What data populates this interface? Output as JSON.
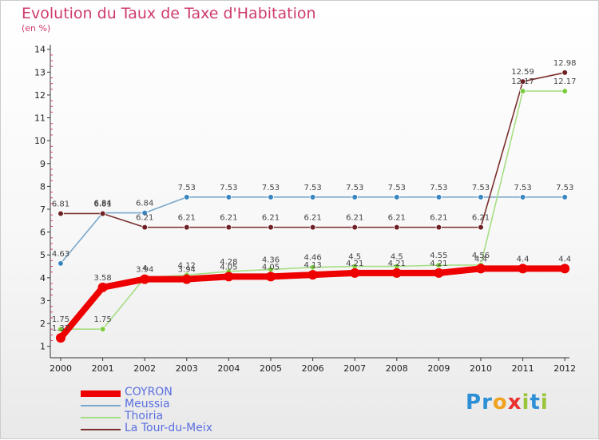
{
  "chart_data": {
    "type": "line",
    "title": "Evolution du Taux de Taxe d'Habitation",
    "subtitle": "(en %)",
    "xlabel": "",
    "ylabel": "(en %)",
    "ylim": [
      0.5,
      14.2
    ],
    "yticks": [
      "1",
      "2",
      "3",
      "4",
      "5",
      "6",
      "7",
      "8",
      "9",
      "10",
      "11",
      "12",
      "13",
      "14"
    ],
    "categories": [
      "2000",
      "2001",
      "2002",
      "2003",
      "2004",
      "2005",
      "2006",
      "2007",
      "2008",
      "2009",
      "2010",
      "2011",
      "2012"
    ],
    "series": [
      {
        "name": "COYRON",
        "color": "#ee0000",
        "values": [
          1.37,
          3.58,
          3.94,
          3.94,
          4.05,
          4.05,
          4.13,
          4.21,
          4.21,
          4.21,
          4.4,
          4.4,
          4.4
        ],
        "labels": [
          "1.37",
          "3.58",
          "3.94",
          "3.94",
          "4.05",
          "4.05",
          "4.13",
          "4.21",
          "4.21",
          "4.21",
          "4.4",
          "4.4",
          "4.4"
        ]
      },
      {
        "name": "Meussia",
        "color": "#78a8cc",
        "marker": "#3a86c0",
        "values": [
          4.63,
          6.84,
          6.84,
          7.53,
          7.53,
          7.53,
          7.53,
          7.53,
          7.53,
          7.53,
          7.53,
          7.53,
          7.53
        ],
        "labels": [
          "4.63",
          "6.84",
          "6.84",
          "7.53",
          "7.53",
          "7.53",
          "7.53",
          "7.53",
          "7.53",
          "7.53",
          "7.53",
          "7.53",
          "7.53"
        ]
      },
      {
        "name": "Thoiria",
        "color": "#a6de84",
        "marker": "#7ccc3e",
        "values": [
          1.75,
          1.75,
          4.0,
          4.12,
          4.28,
          4.36,
          4.46,
          4.5,
          4.5,
          4.55,
          4.56,
          12.17,
          12.17
        ],
        "labels": [
          "1.75",
          "1.75",
          "4",
          "4.12",
          "4.28",
          "4.36",
          "4.46",
          "4.5",
          "4.5",
          "4.55",
          "4.56",
          "12.17",
          "12.17"
        ]
      },
      {
        "name": "La Tour-du-Meix",
        "color": "#7a2e2e",
        "marker": "#6e2024",
        "values": [
          6.81,
          6.81,
          6.21,
          6.21,
          6.21,
          6.21,
          6.21,
          6.21,
          6.21,
          6.21,
          6.21,
          12.59,
          12.98
        ],
        "labels": [
          "6.81",
          "6.81",
          "6.21",
          "6.21",
          "6.21",
          "6.21",
          "6.21",
          "6.21",
          "6.21",
          "6.21",
          "6.21",
          "12.59",
          "12.98"
        ]
      }
    ]
  },
  "logo": {
    "letters": [
      {
        "ch": "P",
        "color": "#2d8fd6"
      },
      {
        "ch": "r",
        "color": "#2d8fd6"
      },
      {
        "ch": "o",
        "color": "#f0a21e"
      },
      {
        "ch": "x",
        "color": "#e8302f"
      },
      {
        "ch": "i",
        "color": "#9ac53a"
      },
      {
        "ch": "t",
        "color": "#2d8fd6"
      },
      {
        "ch": "i",
        "color": "#9ac53a"
      }
    ]
  }
}
